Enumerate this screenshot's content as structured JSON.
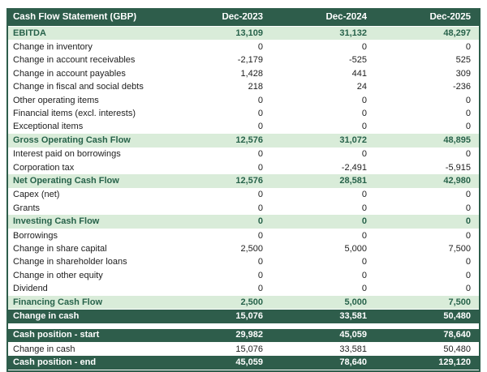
{
  "colors": {
    "header_bg": "#2e5d4b",
    "header_text": "#ffffff",
    "subtotal_bg": "#d9ecd9",
    "subtotal_text": "#27624a",
    "total_bg": "#2e5d4b",
    "total_text": "#ffffff",
    "body_text": "#1d1d1d",
    "page_bg": "#ffffff"
  },
  "chart_data": {
    "type": "table",
    "title": "Cash Flow Statement (GBP)",
    "columns": [
      "Dec-2023",
      "Dec-2024",
      "Dec-2025"
    ],
    "rows": [
      {
        "label": "EBITDA",
        "values": [
          "13,109",
          "31,132",
          "48,297"
        ],
        "style": "subtotal"
      },
      {
        "label": "Change in inventory",
        "values": [
          "0",
          "0",
          "0"
        ],
        "style": "normal"
      },
      {
        "label": "Change in account receivables",
        "values": [
          "-2,179",
          "-525",
          "525"
        ],
        "style": "normal"
      },
      {
        "label": "Change in account payables",
        "values": [
          "1,428",
          "441",
          "309"
        ],
        "style": "normal"
      },
      {
        "label": "Change in fiscal and social debts",
        "values": [
          "218",
          "24",
          "-236"
        ],
        "style": "normal"
      },
      {
        "label": "Other operating items",
        "values": [
          "0",
          "0",
          "0"
        ],
        "style": "normal"
      },
      {
        "label": "Financial items (excl. interests)",
        "values": [
          "0",
          "0",
          "0"
        ],
        "style": "normal"
      },
      {
        "label": "Exceptional items",
        "values": [
          "0",
          "0",
          "0"
        ],
        "style": "normal"
      },
      {
        "label": "Gross Operating Cash Flow",
        "values": [
          "12,576",
          "31,072",
          "48,895"
        ],
        "style": "subtotal"
      },
      {
        "label": "Interest paid on borrowings",
        "values": [
          "0",
          "0",
          "0"
        ],
        "style": "normal"
      },
      {
        "label": "Corporation tax",
        "values": [
          "0",
          "-2,491",
          "-5,915"
        ],
        "style": "normal"
      },
      {
        "label": "Net Operating Cash Flow",
        "values": [
          "12,576",
          "28,581",
          "42,980"
        ],
        "style": "subtotal"
      },
      {
        "label": "Capex (net)",
        "values": [
          "0",
          "0",
          "0"
        ],
        "style": "normal"
      },
      {
        "label": "Grants",
        "values": [
          "0",
          "0",
          "0"
        ],
        "style": "normal"
      },
      {
        "label": "Investing Cash Flow",
        "values": [
          "0",
          "0",
          "0"
        ],
        "style": "subtotal"
      },
      {
        "label": "Borrowings",
        "values": [
          "0",
          "0",
          "0"
        ],
        "style": "normal"
      },
      {
        "label": "Change in share capital",
        "values": [
          "2,500",
          "5,000",
          "7,500"
        ],
        "style": "normal"
      },
      {
        "label": "Change in shareholder loans",
        "values": [
          "0",
          "0",
          "0"
        ],
        "style": "normal"
      },
      {
        "label": "Change in other equity",
        "values": [
          "0",
          "0",
          "0"
        ],
        "style": "normal"
      },
      {
        "label": "Dividend",
        "values": [
          "0",
          "0",
          "0"
        ],
        "style": "normal"
      },
      {
        "label": "Financing Cash Flow",
        "values": [
          "2,500",
          "5,000",
          "7,500"
        ],
        "style": "subtotal"
      },
      {
        "label": "Change in cash",
        "values": [
          "15,076",
          "33,581",
          "50,480"
        ],
        "style": "total"
      },
      {
        "style": "spacer"
      },
      {
        "label": "Cash position - start",
        "values": [
          "29,982",
          "45,059",
          "78,640"
        ],
        "style": "total"
      },
      {
        "label": "Change in cash",
        "values": [
          "15,076",
          "33,581",
          "50,480"
        ],
        "style": "normal"
      },
      {
        "label": "Cash position - end",
        "values": [
          "45,059",
          "78,640",
          "129,120"
        ],
        "style": "total"
      }
    ]
  }
}
